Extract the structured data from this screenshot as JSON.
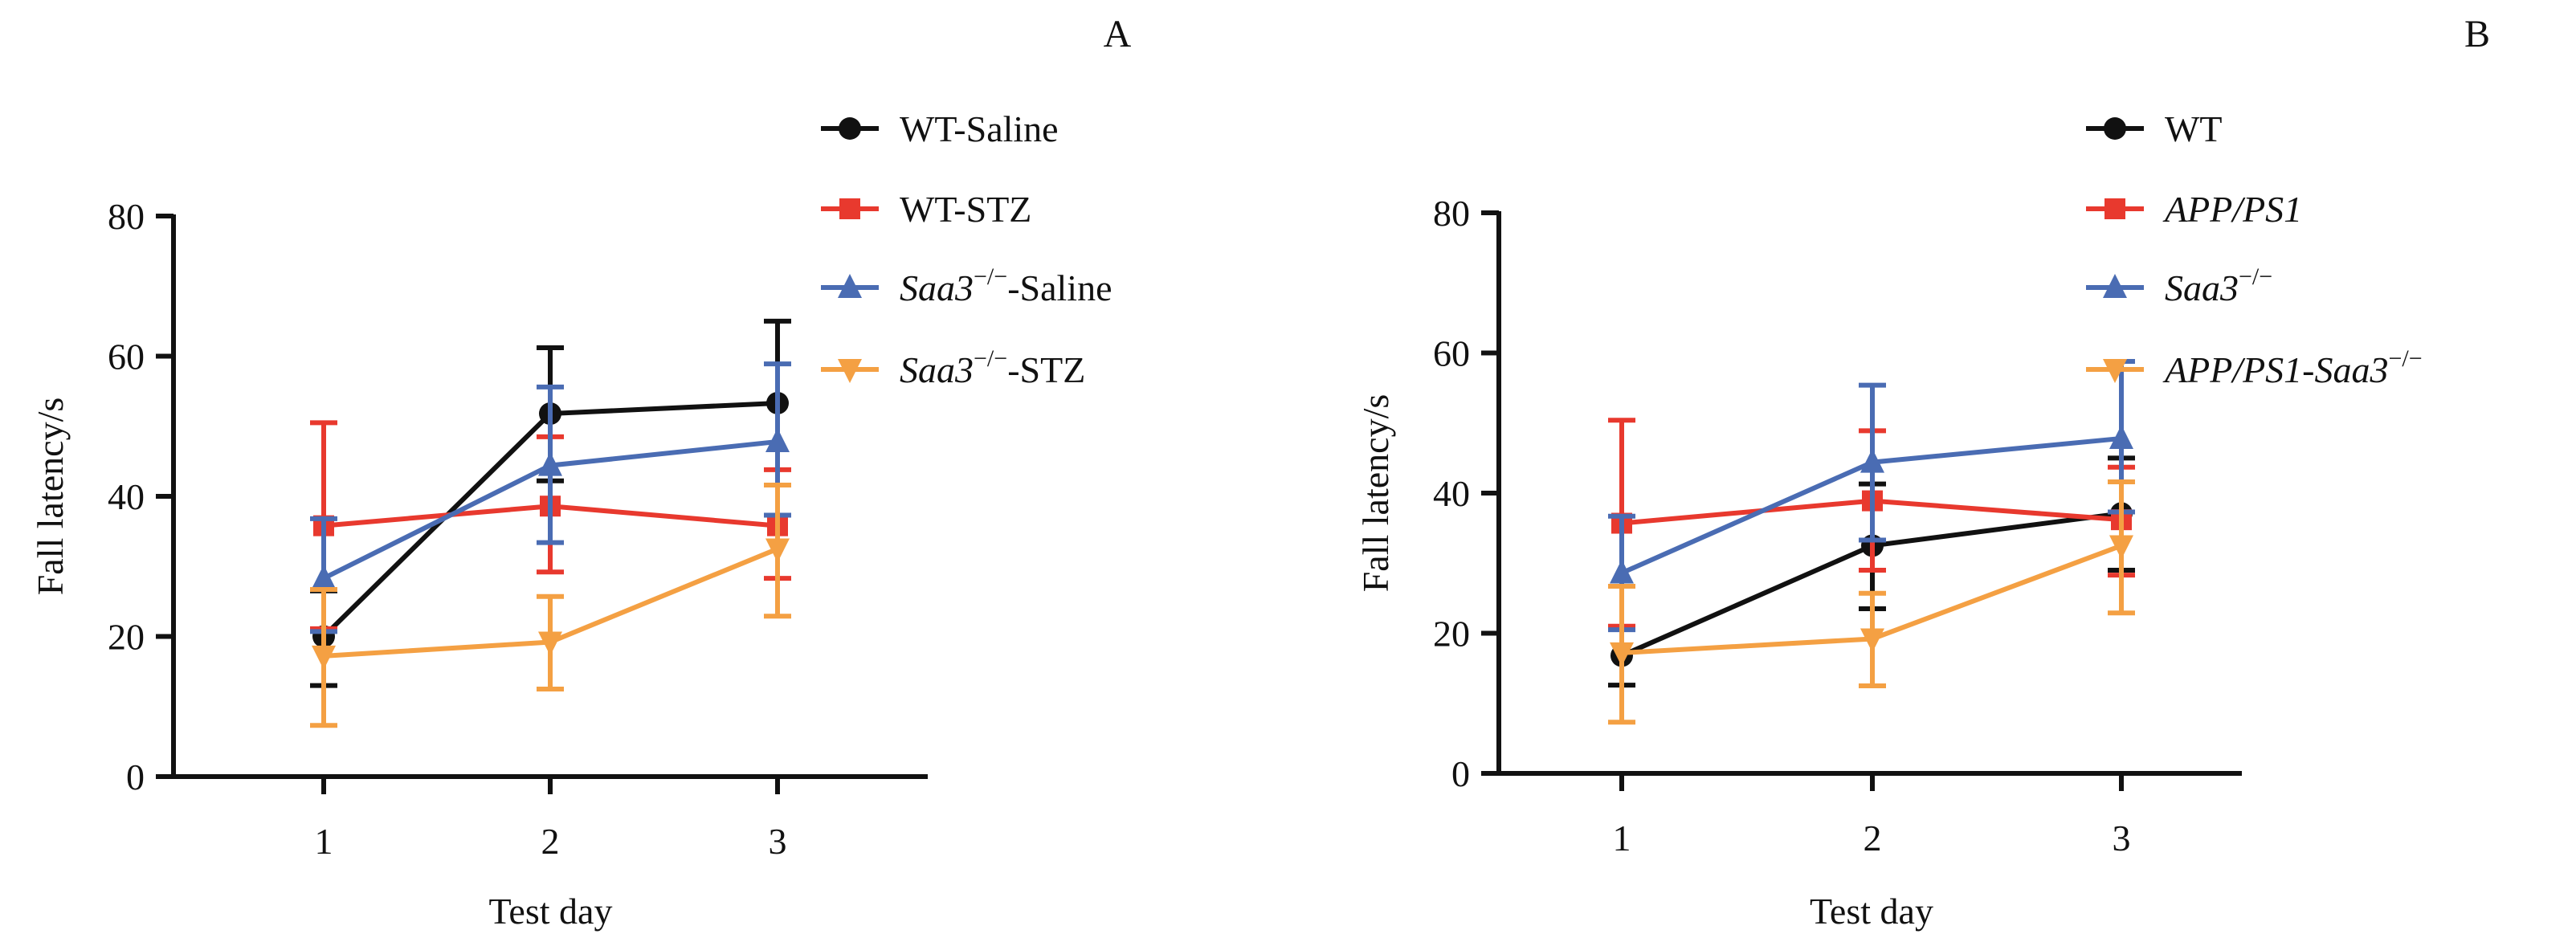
{
  "chart_data": [
    {
      "panel": "A",
      "type": "line",
      "xlabel": "Test day",
      "ylabel": "Fall latency/s",
      "x": [
        1,
        2,
        3
      ],
      "ylim": [
        0,
        80
      ],
      "yticks": [
        0,
        20,
        40,
        60,
        80
      ],
      "xticks": [
        1,
        2,
        3
      ],
      "legend_placement": "top-right",
      "series": [
        {
          "label": {
            "pre": "WT-Saline",
            "italic": "",
            "sup": "",
            "post": ""
          },
          "color": "#111111",
          "marker": "circle",
          "values": [
            20.0,
            51.8,
            53.3
          ],
          "err_upper": [
            26.5,
            61.2,
            65.0
          ],
          "err_lower": [
            13.0,
            42.2,
            41.6
          ]
        },
        {
          "label": {
            "pre": "WT-STZ",
            "italic": "",
            "sup": "",
            "post": ""
          },
          "color": "#e8392e",
          "marker": "square",
          "values": [
            35.8,
            38.6,
            35.8
          ],
          "err_upper": [
            50.5,
            48.5,
            43.8
          ],
          "err_lower": [
            21.1,
            29.2,
            28.3
          ]
        },
        {
          "label": {
            "pre": "",
            "italic": "Saa3",
            "sup": "−/−",
            "post": "-Saline"
          },
          "color": "#4a6cb3",
          "marker": "triangle-up",
          "values": [
            28.3,
            44.4,
            47.8
          ],
          "err_upper": [
            36.8,
            55.6,
            58.9
          ],
          "err_lower": [
            20.7,
            33.4,
            37.3
          ]
        },
        {
          "label": {
            "pre": "",
            "italic": "Saa3",
            "sup": "−/−",
            "post": "-STZ"
          },
          "color": "#f4a043",
          "marker": "triangle-down",
          "values": [
            17.2,
            19.2,
            32.5
          ],
          "err_upper": [
            26.7,
            25.7,
            41.6
          ],
          "err_lower": [
            7.3,
            12.5,
            22.9
          ]
        }
      ]
    },
    {
      "panel": "B",
      "type": "line",
      "xlabel": "Test day",
      "ylabel": "Fall latency/s",
      "x": [
        1,
        2,
        3
      ],
      "ylim": [
        0,
        80
      ],
      "yticks": [
        0,
        20,
        40,
        60,
        80
      ],
      "xticks": [
        1,
        2,
        3
      ],
      "legend_placement": "top-right",
      "series": [
        {
          "label": {
            "pre": "WT",
            "italic": "",
            "sup": "",
            "post": ""
          },
          "color": "#111111",
          "marker": "circle",
          "values": [
            16.8,
            32.5,
            37.1
          ],
          "err_upper": [
            20.9,
            41.3,
            45.0
          ],
          "err_lower": [
            12.6,
            23.5,
            29.0
          ]
        },
        {
          "label": {
            "pre": "",
            "italic": "APP/PS1",
            "sup": "",
            "post": ""
          },
          "color": "#e8392e",
          "marker": "square",
          "values": [
            35.7,
            38.9,
            36.2
          ],
          "err_upper": [
            50.4,
            48.9,
            43.7
          ],
          "err_lower": [
            21.0,
            29.0,
            28.3
          ]
        },
        {
          "label": {
            "pre": "",
            "italic": "Saa3",
            "sup": "−/−",
            "post": ""
          },
          "color": "#4a6cb3",
          "marker": "triangle-up",
          "values": [
            28.6,
            44.4,
            47.8
          ],
          "err_upper": [
            36.7,
            55.4,
            58.8
          ],
          "err_lower": [
            20.5,
            33.3,
            37.3
          ]
        },
        {
          "label": {
            "pre": "",
            "italic": "APP/PS1-Saa3",
            "sup": "−/−",
            "post": ""
          },
          "color": "#f4a043",
          "marker": "triangle-down",
          "values": [
            17.2,
            19.2,
            32.5
          ],
          "err_upper": [
            26.7,
            25.7,
            41.6
          ],
          "err_lower": [
            7.3,
            12.5,
            22.9
          ]
        }
      ]
    }
  ]
}
